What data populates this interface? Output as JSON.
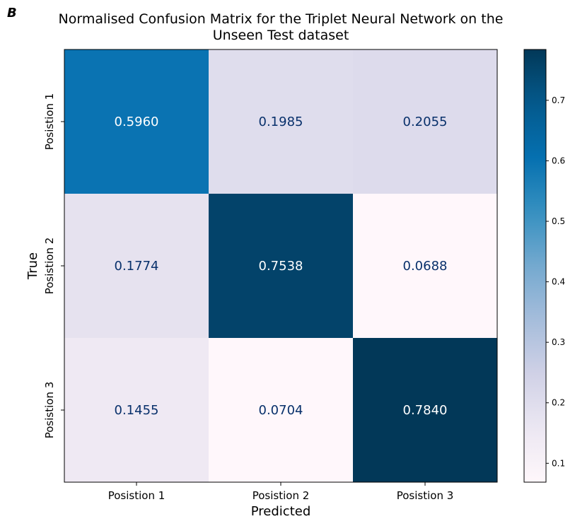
{
  "panel_letter": "B",
  "chart_data": {
    "type": "heatmap",
    "title_lines": [
      "Normalised Confusion Matrix for the Triplet Neural Network on the",
      "Unseen Test dataset"
    ],
    "xlabel": "Predicted",
    "ylabel": "True",
    "x_categories": [
      "Posistion 1",
      "Posistion 2",
      "Posistion 3"
    ],
    "y_categories": [
      "Posistion 1",
      "Posistion 2",
      "Posistion 3"
    ],
    "matrix": [
      [
        0.596,
        0.1985,
        0.2055
      ],
      [
        0.1774,
        0.7538,
        0.0688
      ],
      [
        0.1455,
        0.0704,
        0.784
      ]
    ],
    "cell_labels": [
      [
        "0.5960",
        "0.1985",
        "0.2055"
      ],
      [
        "0.1774",
        "0.7538",
        "0.0688"
      ],
      [
        "0.1455",
        "0.0704",
        "0.7840"
      ]
    ],
    "colormap": "PuBu",
    "vmin": 0.0688,
    "vmax": 0.784,
    "colorbar_ticks": [
      0.1,
      0.2,
      0.3,
      0.4,
      0.5,
      0.6,
      0.7
    ],
    "colorbar_tick_labels": [
      "0.1",
      "0.2",
      "0.3",
      "0.4",
      "0.5",
      "0.6",
      "0.7"
    ],
    "text_color": "#08306b"
  }
}
